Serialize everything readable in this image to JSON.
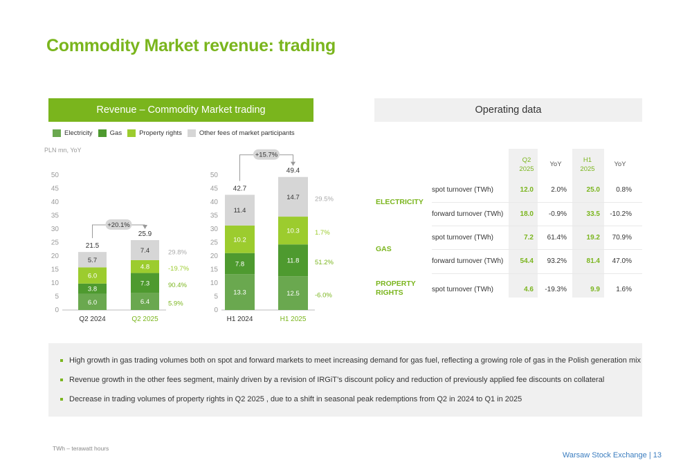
{
  "title": "Commodity Market revenue: trading",
  "left_panel_title": "Revenue – Commodity Market trading",
  "right_panel_title": "Operating data",
  "unit_label": "PLN mn, YoY",
  "colors": {
    "electricity": "#6aa84f",
    "gas": "#4e9a2f",
    "property_rights": "#9ccc2e",
    "other_fees": "#d6d6d6",
    "brand": "#7ab51d"
  },
  "chart_data": [
    {
      "type": "bar",
      "stacked": true,
      "categories": [
        "Q2 2024",
        "Q2 2025"
      ],
      "series": [
        {
          "name": "Electricity",
          "values": [
            6.0,
            6.4
          ],
          "labels": [
            "6.0",
            "6.4"
          ],
          "yoy": "5.9%"
        },
        {
          "name": "Gas",
          "values": [
            3.8,
            7.3
          ],
          "labels": [
            "3.8",
            "7.3"
          ],
          "yoy": "90.4%"
        },
        {
          "name": "Property rights",
          "values": [
            6.0,
            4.8
          ],
          "labels": [
            "6.0",
            "4.8"
          ],
          "yoy": "-19.7%"
        },
        {
          "name": "Other fees of market participants",
          "values": [
            5.7,
            7.4
          ],
          "labels": [
            "5.7",
            "7.4"
          ],
          "yoy": "29.8%"
        }
      ],
      "totals": [
        "21.5",
        "25.9"
      ],
      "growth": "+20.1%",
      "ylim": [
        0,
        50
      ],
      "yticks": [
        "0",
        "5",
        "10",
        "15",
        "20",
        "25",
        "30",
        "35",
        "40",
        "45",
        "50"
      ]
    },
    {
      "type": "bar",
      "stacked": true,
      "categories": [
        "H1 2024",
        "H1 2025"
      ],
      "series": [
        {
          "name": "Electricity",
          "values": [
            13.3,
            12.5
          ],
          "labels": [
            "13.3",
            "12.5"
          ],
          "yoy": "-6.0%"
        },
        {
          "name": "Gas",
          "values": [
            7.8,
            11.8
          ],
          "labels": [
            "7.8",
            "11.8"
          ],
          "yoy": "51.2%"
        },
        {
          "name": "Property rights",
          "values": [
            10.2,
            10.3
          ],
          "labels": [
            "10.2",
            "10.3"
          ],
          "yoy": "1.7%"
        },
        {
          "name": "Other fees of market participants",
          "values": [
            11.4,
            14.7
          ],
          "labels": [
            "11.4",
            "14.7"
          ],
          "yoy": "29.5%"
        }
      ],
      "totals": [
        "42.7",
        "49.4"
      ],
      "growth": "+15.7%",
      "ylim": [
        0,
        50
      ],
      "yticks": [
        "0",
        "5",
        "10",
        "15",
        "20",
        "25",
        "30",
        "35",
        "40",
        "45",
        "50"
      ]
    }
  ],
  "legend": [
    "Electricity",
    "Gas",
    "Property rights",
    "Other fees of market participants"
  ],
  "table": {
    "headers": {
      "q2": "Q2 2025",
      "yoy1": "YoY",
      "h1": "H1 2025",
      "yoy2": "YoY"
    },
    "groups": [
      {
        "name": "ELECTRICITY",
        "rows": [
          {
            "metric": "spot turnover (TWh)",
            "q2": "12.0",
            "yoy1": "2.0%",
            "h1": "25.0",
            "yoy2": "0.8%"
          },
          {
            "metric": "forward turnover (TWh)",
            "q2": "18.0",
            "yoy1": "-0.9%",
            "h1": "33.5",
            "yoy2": "-10.2%"
          }
        ]
      },
      {
        "name": "GAS",
        "rows": [
          {
            "metric": "spot turnover (TWh)",
            "q2": "7.2",
            "yoy1": "61.4%",
            "h1": "19.2",
            "yoy2": "70.9%"
          },
          {
            "metric": "forward turnover (TWh)",
            "q2": "54.4",
            "yoy1": "93.2%",
            "h1": "81.4",
            "yoy2": "47.0%"
          }
        ]
      },
      {
        "name": "PROPERTY RIGHTS",
        "rows": [
          {
            "metric": "spot turnover (TWh)",
            "q2": "4.6",
            "yoy1": "-19.3%",
            "h1": "9.9",
            "yoy2": "1.6%"
          }
        ]
      }
    ]
  },
  "notes": [
    "High growth in gas trading volumes both on spot and forward markets to meet increasing demand for gas fuel, reflecting a growing role of gas in the Polish generation mix",
    "Revenue growth in the other fees segment, mainly driven by a revision of IRGiT’s discount policy and reduction of previously applied fee discounts on collateral",
    "Decrease in trading volumes of property rights in Q2 2025 , due to a shift in seasonal peak redemptions from Q2 in 2024 to Q1 in 2025"
  ],
  "footnote": "TWh – terawatt hours",
  "footer": "Warsaw Stock Exchange | 13"
}
